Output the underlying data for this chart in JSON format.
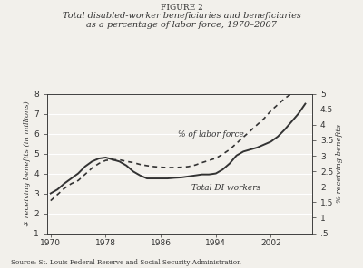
{
  "title_line1": "FIGURE 2",
  "title_line2": "Total disabled-worker beneficiaries and beneficiaries",
  "title_line3": "as a percentage of labor force, 1970–2007",
  "source": "Source: St. Louis Federal Reserve and Social Security Administration",
  "years": [
    1970,
    1971,
    1972,
    1973,
    1974,
    1975,
    1976,
    1977,
    1978,
    1979,
    1980,
    1981,
    1982,
    1983,
    1984,
    1985,
    1986,
    1987,
    1988,
    1989,
    1990,
    1991,
    1992,
    1993,
    1994,
    1995,
    1996,
    1997,
    1998,
    1999,
    2000,
    2001,
    2002,
    2003,
    2004,
    2005,
    2006,
    2007
  ],
  "solid_values": [
    3.0,
    3.2,
    3.5,
    3.75,
    4.0,
    4.35,
    4.6,
    4.75,
    4.8,
    4.7,
    4.6,
    4.4,
    4.1,
    3.9,
    3.75,
    3.75,
    3.75,
    3.75,
    3.78,
    3.8,
    3.85,
    3.9,
    3.95,
    3.95,
    4.0,
    4.2,
    4.5,
    4.9,
    5.1,
    5.2,
    5.3,
    5.45,
    5.6,
    5.85,
    6.2,
    6.6,
    7.0,
    7.5
  ],
  "dashed_values": [
    1.55,
    1.75,
    1.95,
    2.1,
    2.2,
    2.4,
    2.6,
    2.75,
    2.85,
    2.87,
    2.87,
    2.82,
    2.78,
    2.72,
    2.68,
    2.65,
    2.63,
    2.62,
    2.62,
    2.63,
    2.65,
    2.7,
    2.78,
    2.85,
    2.92,
    3.05,
    3.2,
    3.4,
    3.6,
    3.8,
    4.0,
    4.2,
    4.45,
    4.65,
    4.85,
    5.0,
    5.2,
    5.4
  ],
  "left_ylabel": "# receiving benefits (in millions)",
  "right_ylabel": "% receiving benefits",
  "ylim_left": [
    1,
    8
  ],
  "ylim_right": [
    0.5,
    5.0
  ],
  "yticks_left": [
    1,
    2,
    3,
    4,
    5,
    6,
    7,
    8
  ],
  "yticks_right": [
    0.5,
    1.0,
    1.5,
    2.0,
    2.5,
    3.0,
    3.5,
    4.0,
    4.5,
    5.0
  ],
  "ytick_labels_right": [
    ".5",
    "1",
    "1.5",
    "2",
    "2.5",
    "3",
    "3.5",
    "4",
    "4.5",
    "5"
  ],
  "xticks": [
    1970,
    1978,
    1986,
    1994,
    2002
  ],
  "xlim": [
    1969.5,
    2008
  ],
  "label_solid": "% of labor force",
  "label_dashed": "Total DI workers",
  "line_color": "#333333",
  "bg_color": "#f2f0eb",
  "grid_color": "#ffffff",
  "font_color": "#333333"
}
